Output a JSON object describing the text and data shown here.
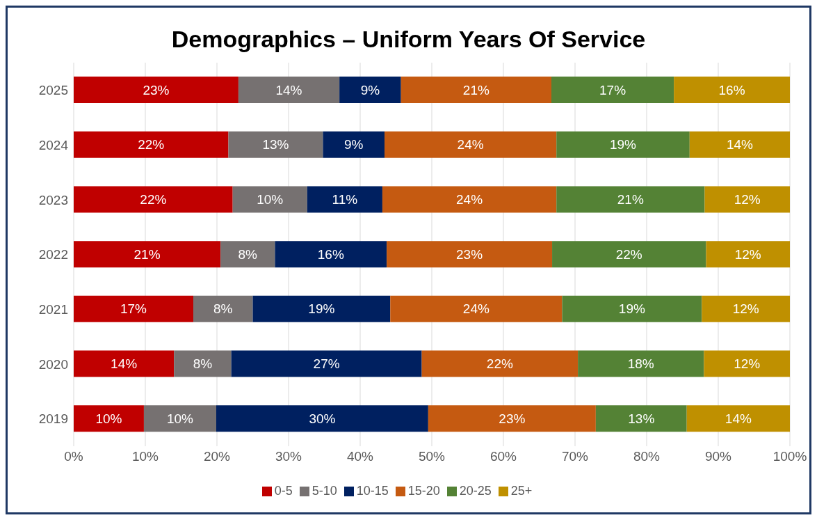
{
  "chart_data": {
    "type": "bar",
    "title": "Demographics – Uniform Years Of Service",
    "orientation": "horizontal",
    "stacked": true,
    "categories": [
      "2025",
      "2024",
      "2023",
      "2022",
      "2021",
      "2020",
      "2019"
    ],
    "series": [
      {
        "name": "0-5",
        "color": "#c00000",
        "values": [
          23.0,
          21.6,
          22.2,
          20.5,
          16.7,
          14.0,
          9.8
        ],
        "value_labels": [
          "23%",
          "22%",
          "22%",
          "21%",
          "17%",
          "14%",
          "10%"
        ]
      },
      {
        "name": "5-10",
        "color": "#767171",
        "values": [
          14.1,
          13.2,
          10.4,
          7.6,
          8.3,
          8.0,
          10.1
        ],
        "value_labels": [
          "14%",
          "13%",
          "10%",
          "8%",
          "8%",
          "8%",
          "10%"
        ]
      },
      {
        "name": "10-15",
        "color": "#002060",
        "values": [
          8.6,
          8.6,
          10.5,
          15.6,
          19.2,
          26.6,
          29.6
        ],
        "value_labels": [
          "9%",
          "9%",
          "11%",
          "16%",
          "19%",
          "27%",
          "30%"
        ]
      },
      {
        "name": "15-20",
        "color": "#c55a11",
        "values": [
          21.0,
          24.0,
          24.3,
          23.1,
          24.0,
          21.8,
          23.4
        ],
        "value_labels": [
          "21%",
          "24%",
          "24%",
          "23%",
          "24%",
          "22%",
          "23%"
        ]
      },
      {
        "name": "20-25",
        "color": "#548235",
        "values": [
          17.1,
          18.6,
          20.7,
          21.5,
          19.5,
          17.6,
          12.7
        ],
        "value_labels": [
          "17%",
          "19%",
          "21%",
          "22%",
          "19%",
          "18%",
          "13%"
        ]
      },
      {
        "name": "25+",
        "color": "#bf9000",
        "values": [
          16.2,
          14.0,
          11.9,
          11.7,
          12.3,
          12.0,
          14.4
        ],
        "value_labels": [
          "16%",
          "14%",
          "12%",
          "12%",
          "12%",
          "12%",
          "14%"
        ]
      }
    ],
    "xlim": [
      0,
      100
    ],
    "xticks": [
      {
        "value": 0,
        "label": "0%"
      },
      {
        "value": 10,
        "label": "10%"
      },
      {
        "value": 20,
        "label": "20%"
      },
      {
        "value": 30,
        "label": "30%"
      },
      {
        "value": 40,
        "label": "40%"
      },
      {
        "value": 50,
        "label": "50%"
      },
      {
        "value": 60,
        "label": "60%"
      },
      {
        "value": 70,
        "label": "70%"
      },
      {
        "value": 80,
        "label": "80%"
      },
      {
        "value": 90,
        "label": "90%"
      },
      {
        "value": 100,
        "label": "100%"
      }
    ],
    "grid": "x",
    "legend": "bottom"
  }
}
